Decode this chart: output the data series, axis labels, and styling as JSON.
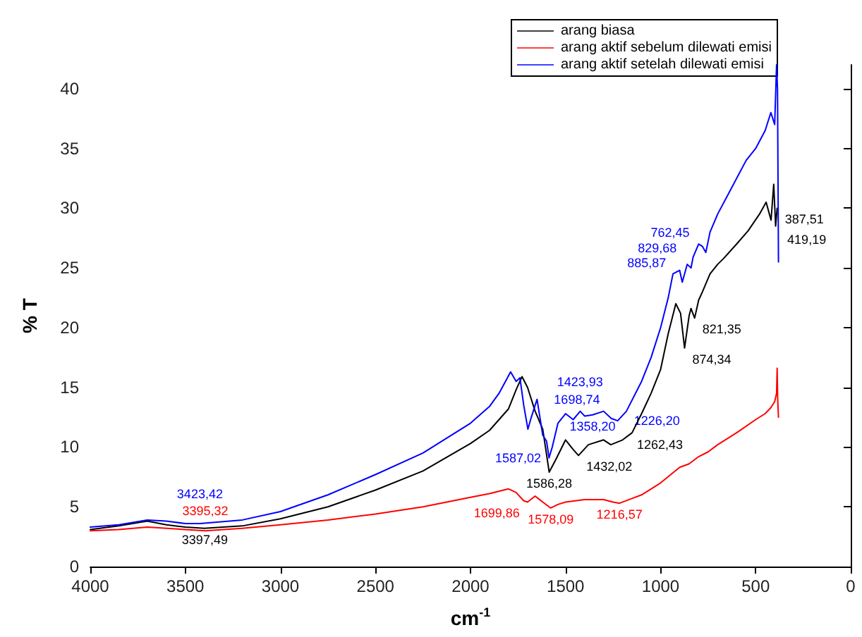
{
  "chart_data": {
    "type": "line",
    "xlabel": "cm$^{-1}$",
    "ylabel": "% T",
    "xlim": [
      4000,
      0
    ],
    "xticks": [
      4000,
      3500,
      3000,
      2500,
      2000,
      1500,
      1000,
      500,
      0
    ],
    "ylim": [
      0,
      42
    ],
    "yticks": [
      0,
      5,
      10,
      15,
      20,
      25,
      30,
      35,
      40
    ],
    "grid": false,
    "legend": "top right",
    "marker": "none",
    "line_style": "solid",
    "series": [
      {
        "name": "arang biasa",
        "color": "#000000",
        "x": [
          4000,
          3850,
          3700,
          3600,
          3500,
          3400,
          3200,
          3000,
          2750,
          2500,
          2250,
          2000,
          1900,
          1800,
          1760,
          1729,
          1700,
          1660,
          1620,
          1586,
          1550,
          1500,
          1460,
          1432,
          1380,
          1300,
          1262,
          1200,
          1150,
          1100,
          1050,
          1000,
          960,
          920,
          895,
          874,
          850,
          840,
          821,
          800,
          780,
          740,
          700,
          668,
          600,
          540,
          480,
          445,
          419,
          405,
          395,
          387
        ],
        "values": [
          3.1,
          3.4,
          3.8,
          3.5,
          3.3,
          3.2,
          3.4,
          4.0,
          5.0,
          6.4,
          8.0,
          10.3,
          11.4,
          13.2,
          14.8,
          15.9,
          15.0,
          13.0,
          11.5,
          7.9,
          9.0,
          10.6,
          9.8,
          9.3,
          10.2,
          10.6,
          10.2,
          10.6,
          11.2,
          12.8,
          14.5,
          16.5,
          19.5,
          22.0,
          21.2,
          18.3,
          21.0,
          21.6,
          20.8,
          22.3,
          23.0,
          24.5,
          25.3,
          25.8,
          27.0,
          28.1,
          29.5,
          30.5,
          29.0,
          32.0,
          28.5,
          30.0
        ]
      },
      {
        "name": "arang aktif sebelum dilewati emisi",
        "color": "#ff0000",
        "x": [
          4000,
          3850,
          3700,
          3500,
          3395,
          3200,
          3000,
          2750,
          2500,
          2250,
          2000,
          1900,
          1800,
          1760,
          1720,
          1700,
          1660,
          1620,
          1578,
          1540,
          1500,
          1400,
          1300,
          1250,
          1216,
          1150,
          1100,
          1000,
          900,
          850,
          800,
          750,
          700,
          600,
          500,
          450,
          420,
          400,
          390,
          387,
          384,
          380
        ],
        "values": [
          3.0,
          3.1,
          3.3,
          3.1,
          3.0,
          3.2,
          3.5,
          3.9,
          4.4,
          5.0,
          5.8,
          6.1,
          6.5,
          6.2,
          5.5,
          5.4,
          5.9,
          5.4,
          4.9,
          5.2,
          5.4,
          5.6,
          5.6,
          5.4,
          5.3,
          5.7,
          6.0,
          7.0,
          8.3,
          8.6,
          9.2,
          9.6,
          10.2,
          11.2,
          12.3,
          12.8,
          13.3,
          13.8,
          14.5,
          16.6,
          14.0,
          12.5
        ]
      },
      {
        "name": "arang aktif setelah dilewati emisi",
        "color": "#0000ff",
        "x": [
          4000,
          3850,
          3700,
          3600,
          3500,
          3423,
          3200,
          3000,
          2750,
          2500,
          2250,
          2000,
          1900,
          1850,
          1789,
          1760,
          1740,
          1720,
          1698,
          1680,
          1650,
          1620,
          1600,
          1587,
          1570,
          1540,
          1500,
          1460,
          1423,
          1400,
          1358,
          1300,
          1260,
          1226,
          1180,
          1100,
          1050,
          1000,
          960,
          935,
          900,
          886,
          860,
          840,
          829,
          800,
          780,
          762,
          740,
          700,
          650,
          600,
          550,
          500,
          450,
          420,
          400,
          390,
          385,
          380
        ],
        "values": [
          3.3,
          3.5,
          3.9,
          3.8,
          3.6,
          3.6,
          3.9,
          4.6,
          6.0,
          7.7,
          9.5,
          12.0,
          13.4,
          14.5,
          16.3,
          15.5,
          15.8,
          13.5,
          11.5,
          12.5,
          14.0,
          11.0,
          10.5,
          9.1,
          10.0,
          12.0,
          12.8,
          12.3,
          13.0,
          12.6,
          12.7,
          13.0,
          12.4,
          12.2,
          13.0,
          15.5,
          17.5,
          20.0,
          22.5,
          24.5,
          24.8,
          23.8,
          25.3,
          25.0,
          25.9,
          27.0,
          26.8,
          26.3,
          28.0,
          29.5,
          31.0,
          32.5,
          34.0,
          35.0,
          36.5,
          38.0,
          37.0,
          42.0,
          40.0,
          25.5
        ]
      }
    ],
    "annotations": [
      {
        "text": "3423,42",
        "x": 3423.42,
        "y": 3.6
      },
      {
        "text": "1698,74",
        "x": 1698.74,
        "y": 11.5
      },
      {
        "text": "1587,02",
        "x": 1587.02,
        "y": 9.1
      },
      {
        "text": "1423,93",
        "x": 1423.93,
        "y": 13.0
      },
      {
        "text": "1358,20",
        "x": 1358.2,
        "y": 12.7
      },
      {
        "text": "1226,20",
        "x": 1226.2,
        "y": 12.2
      },
      {
        "text": "885,87",
        "x": 885.87,
        "y": 23.8
      },
      {
        "text": "829,68",
        "x": 829.68,
        "y": 25.0
      },
      {
        "text": "762,45",
        "x": 762.45,
        "y": 26.3
      },
      {
        "text": "3397,49",
        "x": 3397.49,
        "y": 3.2
      },
      {
        "text": "1586,28",
        "x": 1586.28,
        "y": 7.9
      },
      {
        "text": "1432,02",
        "x": 1432.02,
        "y": 9.3
      },
      {
        "text": "1262,43",
        "x": 1262.43,
        "y": 10.2
      },
      {
        "text": "874,34",
        "x": 874.34,
        "y": 18.3
      },
      {
        "text": "821,35",
        "x": 821.35,
        "y": 20.8
      },
      {
        "text": "419,19",
        "x": 419.19,
        "y": 29.0
      },
      {
        "text": "387,51",
        "x": 387.51,
        "y": 30.0
      },
      {
        "text": "3395,32",
        "x": 3395.32,
        "y": 3.0
      },
      {
        "text": "1699,86",
        "x": 1699.86,
        "y": 5.4
      },
      {
        "text": "1578,09",
        "x": 1578.09,
        "y": 4.9
      },
      {
        "text": "1216,57",
        "x": 1216.57,
        "y": 5.3
      }
    ]
  }
}
